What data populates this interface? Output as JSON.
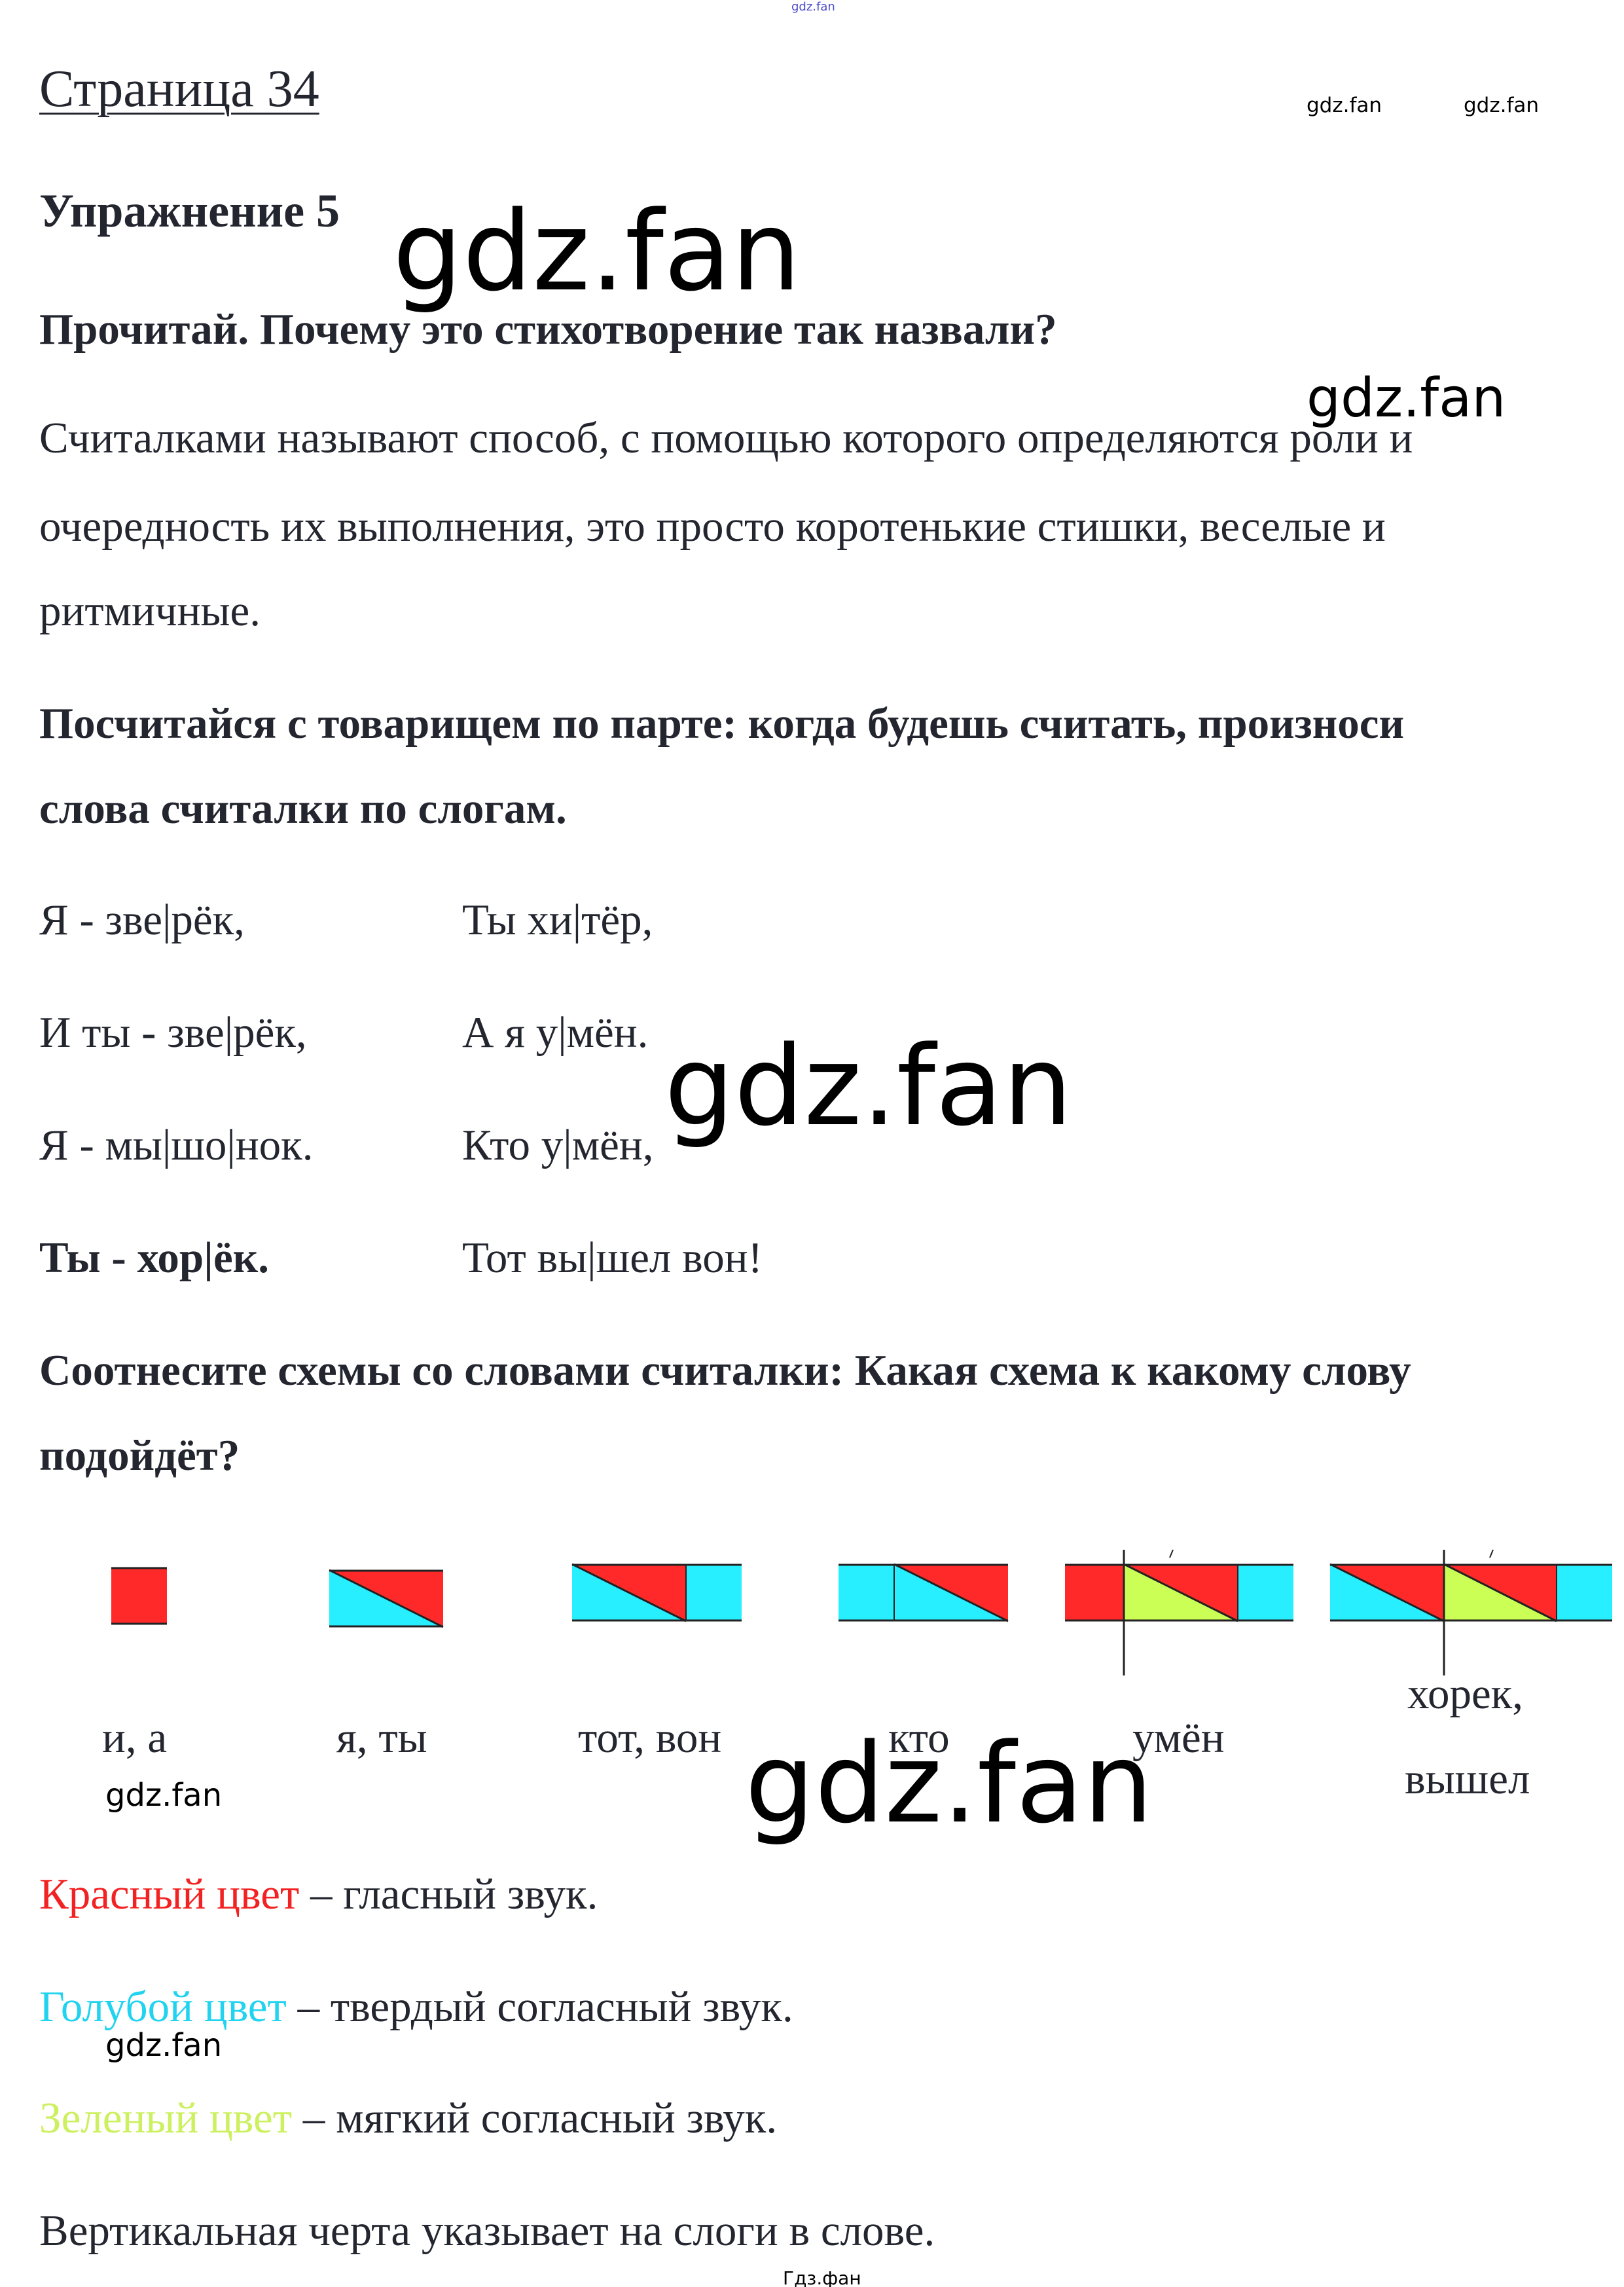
{
  "header": {
    "page_title": "Страница 34",
    "exercise_title": "Упражнение 5"
  },
  "task1": "Прочитай. Почему это стихотворение так назвали?",
  "answer_lines": [
    "Считалками называют способ, с помощью которого определяются роли и",
    "очередность их выполнения, это просто коротенькие стишки, веселые и",
    "ритмичные."
  ],
  "task2_lines": [
    "Посчитайся с товарищем по парте: когда будешь считать, произноси",
    "слова считалки по слогам."
  ],
  "poem": {
    "left": [
      "Я - зве|рёк,",
      "И ты - зве|рёк,",
      "Я - мы|шо|нок.",
      "Ты -  хор|ёк."
    ],
    "right": [
      "Ты хи|тёр,",
      "А я у|мён.",
      "Кто у|мён,",
      "Тот вы|шел вон!"
    ]
  },
  "task3_lines": [
    "Соотнесите схемы со словами считалки: Какая схема к какому слову",
    "подойдёт?"
  ],
  "colors": {
    "red": "#ff2929",
    "blue": "#27efff",
    "green": "#ccff55",
    "outline": "#222222"
  },
  "schemes": [
    {
      "cells": [
        "R"
      ],
      "syllable_line_after": null,
      "stress": false,
      "label": [
        "и, а"
      ]
    },
    {
      "cells": [
        "CR"
      ],
      "syllable_line_after": null,
      "stress": false,
      "label": [
        "я, ты"
      ]
    },
    {
      "cells": [
        "CR",
        "C"
      ],
      "syllable_line_after": null,
      "stress": false,
      "label": [
        "тот, вон"
      ]
    },
    {
      "cells": [
        "C",
        "CR"
      ],
      "syllable_line_after": null,
      "stress": false,
      "label": [
        "кто"
      ]
    },
    {
      "cells": [
        "R",
        "GR",
        "C"
      ],
      "syllable_line_after": 1,
      "stress": true,
      "label": [
        "умён"
      ]
    },
    {
      "cells": [
        "CR",
        "GR",
        "C"
      ],
      "syllable_line_after": 1,
      "stress": true,
      "label": [
        "хорек,",
        "вышел"
      ]
    }
  ],
  "legend": [
    {
      "term": "Красный цвет",
      "rest": " – гласный звук.",
      "color": "#f22222"
    },
    {
      "term": "Голубой цвет",
      "rest": " – твердый согласный звук.",
      "color": "#22d3f0"
    },
    {
      "term": "Зеленый цвет",
      "rest": " – мягкий согласный звук.",
      "color": "#ccf060"
    }
  ],
  "note": "Вертикальная черта указывает на слоги в слове.",
  "watermarks": {
    "main": "gdz.fan",
    "bottom": "Гдз.фан"
  }
}
